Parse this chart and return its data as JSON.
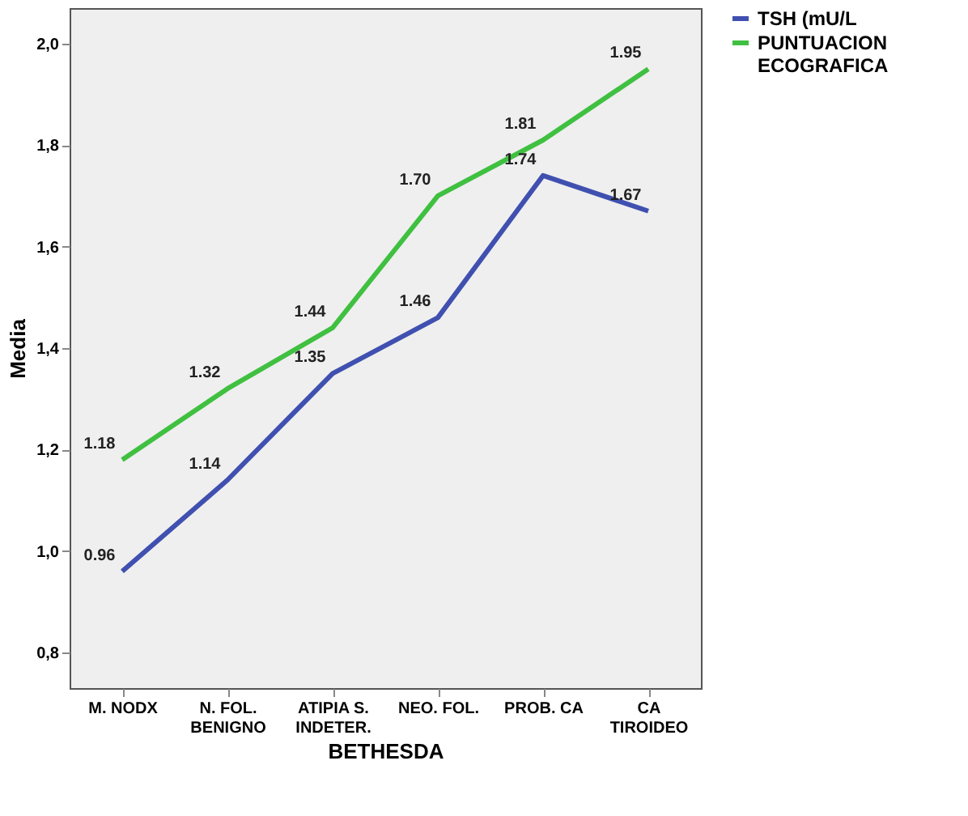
{
  "chart_data": {
    "type": "line",
    "xlabel": "BETHESDA",
    "ylabel": "Media",
    "categories": [
      "M. NODX",
      "N. FOL.\nBENIGNO",
      "ATIPIA S.\nINDETER.",
      "NEO. FOL.",
      "PROB. CA",
      "CA\nTIROIDEO"
    ],
    "series": [
      {
        "name": "TSH (mU/L",
        "color": "#4050b0",
        "values": [
          0.96,
          1.14,
          1.35,
          1.46,
          1.74,
          1.67
        ],
        "value_labels": [
          "0.96",
          "1.14",
          "1.35",
          "1.46",
          "1.74",
          "1.67"
        ]
      },
      {
        "name": "PUNTUACION\nECOGRAFICA",
        "color": "#40c040",
        "values": [
          1.18,
          1.32,
          1.44,
          1.7,
          1.81,
          1.95
        ],
        "value_labels": [
          "1.18",
          "1.32",
          "1.44",
          "1.70",
          "1.81",
          "1.95"
        ]
      }
    ],
    "ylim": [
      0.73,
      2.07
    ],
    "yticks": [
      {
        "value": 0.8,
        "label": "0,8"
      },
      {
        "value": 1.0,
        "label": "1,0"
      },
      {
        "value": 1.2,
        "label": "1,2"
      },
      {
        "value": 1.4,
        "label": "1,4"
      },
      {
        "value": 1.6,
        "label": "1,6"
      },
      {
        "value": 1.8,
        "label": "1,8"
      },
      {
        "value": 2.0,
        "label": "2,0"
      }
    ],
    "grid": false,
    "legend": "top right",
    "marker": "none",
    "line_style": "solid"
  }
}
